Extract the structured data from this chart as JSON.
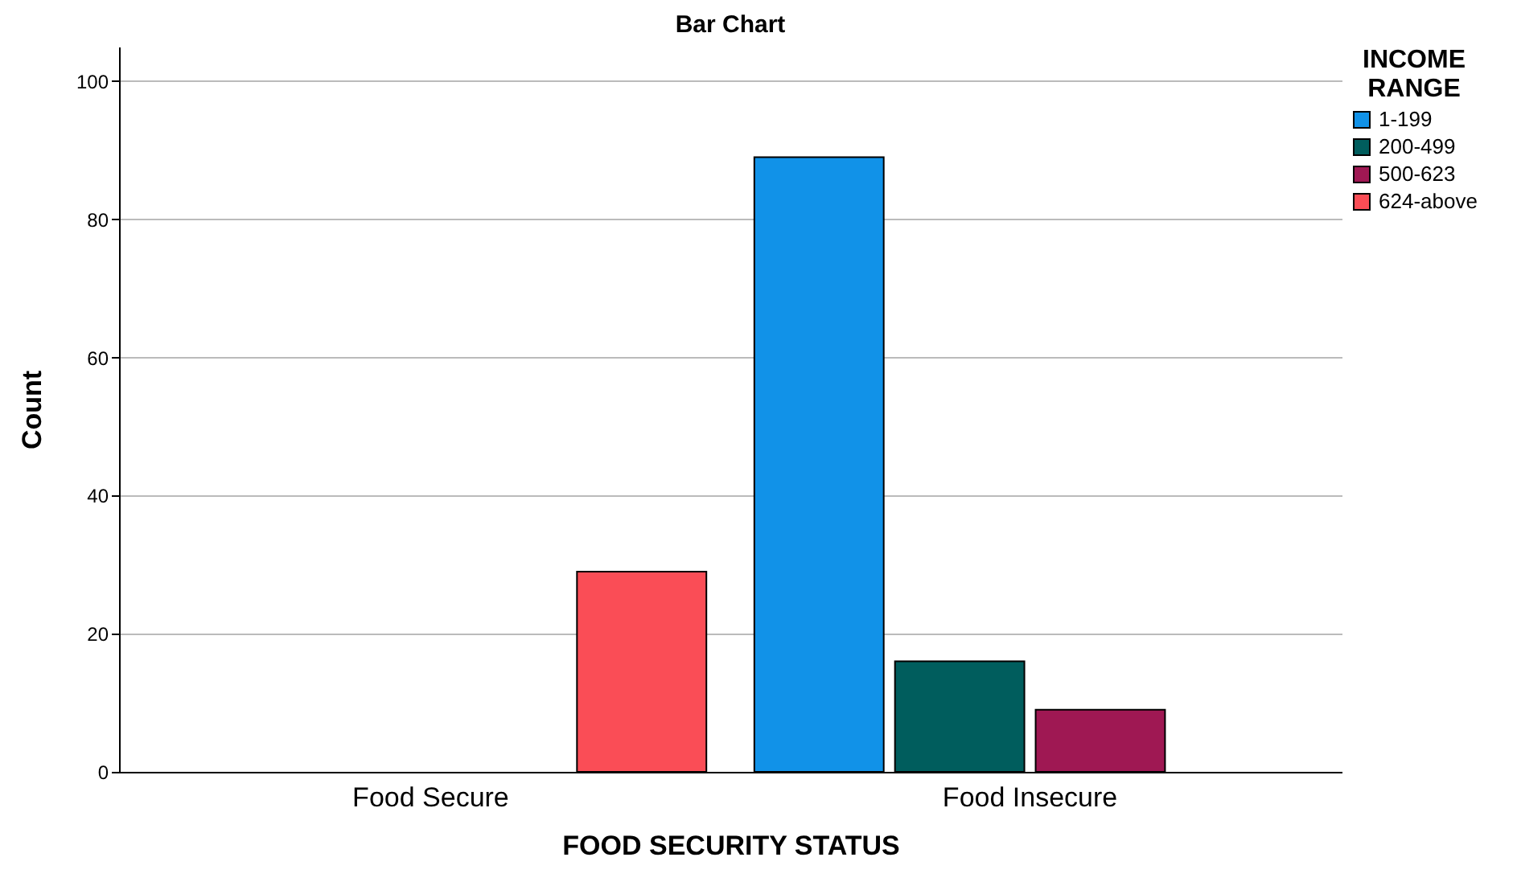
{
  "chart_data": {
    "type": "bar",
    "title": "Bar Chart",
    "xlabel": "FOOD SECURITY STATUS",
    "ylabel": "Count",
    "legend_title": "INCOME RANGE",
    "categories": [
      "Food Secure",
      "Food Insecure"
    ],
    "series": [
      {
        "name": "1-199",
        "color": "#1192e8",
        "values": [
          null,
          89
        ]
      },
      {
        "name": "200-499",
        "color": "#005d5d",
        "values": [
          null,
          16
        ]
      },
      {
        "name": "500-623",
        "color": "#9f1853",
        "values": [
          null,
          9
        ]
      },
      {
        "name": "624-above",
        "color": "#fa4d56",
        "values": [
          29,
          null
        ]
      }
    ],
    "ylim": [
      0,
      105
    ],
    "yticks": [
      0,
      20,
      40,
      60,
      80,
      100
    ],
    "grid": "y",
    "legend": "top right"
  }
}
